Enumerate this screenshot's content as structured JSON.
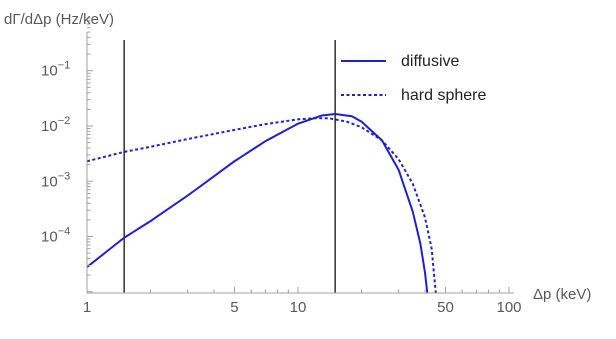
{
  "chart_data": {
    "type": "line",
    "xlabel": "Δp (keV)",
    "ylabel": "dΓ/dΔp (Hz/keV)",
    "x_scale": "log",
    "y_scale": "log",
    "xlim": [
      1,
      100
    ],
    "ylim": [
      9.5e-06,
      0.9
    ],
    "x_ticks": [
      {
        "value": 1,
        "label": "1"
      },
      {
        "value": 5,
        "label": "5"
      },
      {
        "value": 10,
        "label": "10"
      },
      {
        "value": 50,
        "label": "50"
      },
      {
        "value": 100,
        "label": "100"
      }
    ],
    "y_ticks": [
      {
        "value": 0.1,
        "base": "10",
        "exp": "−1"
      },
      {
        "value": 0.01,
        "base": "10",
        "exp": "−2"
      },
      {
        "value": 0.001,
        "base": "10",
        "exp": "−3"
      },
      {
        "value": 0.0001,
        "base": "10",
        "exp": "−4"
      }
    ],
    "vertical_lines": [
      1.5,
      15
    ],
    "legend_position": "top-right",
    "series": [
      {
        "name": "diffusive",
        "style": "solid",
        "color": "#1f1fd6",
        "points": [
          [
            1.0,
            2.8e-05
          ],
          [
            1.5,
            9.5e-05
          ],
          [
            2.0,
            0.00019
          ],
          [
            3.0,
            0.00055
          ],
          [
            5.0,
            0.0023
          ],
          [
            7.0,
            0.0053
          ],
          [
            10.0,
            0.011
          ],
          [
            13.0,
            0.0155
          ],
          [
            15.0,
            0.0165
          ],
          [
            18.0,
            0.015
          ],
          [
            20.0,
            0.012
          ],
          [
            25.0,
            0.0055
          ],
          [
            30.0,
            0.0016
          ],
          [
            35.0,
            0.00028
          ],
          [
            38.0,
            7.5e-05
          ],
          [
            40.0,
            2.2e-05
          ],
          [
            41.0,
            9.5e-06
          ]
        ]
      },
      {
        "name": "hard sphere",
        "style": "dotted",
        "color": "#1f1fd6",
        "points": [
          [
            1.0,
            0.0023
          ],
          [
            1.5,
            0.0034
          ],
          [
            2.0,
            0.0042
          ],
          [
            3.0,
            0.0058
          ],
          [
            5.0,
            0.0085
          ],
          [
            7.0,
            0.0108
          ],
          [
            10.0,
            0.0132
          ],
          [
            12.0,
            0.0138
          ],
          [
            14.0,
            0.0138
          ],
          [
            17.0,
            0.012
          ],
          [
            20.0,
            0.0095
          ],
          [
            25.0,
            0.0055
          ],
          [
            30.0,
            0.0025
          ],
          [
            35.0,
            0.0009
          ],
          [
            40.0,
            0.00022
          ],
          [
            43.0,
            6e-05
          ],
          [
            45.0,
            9.5e-06
          ]
        ]
      }
    ]
  }
}
